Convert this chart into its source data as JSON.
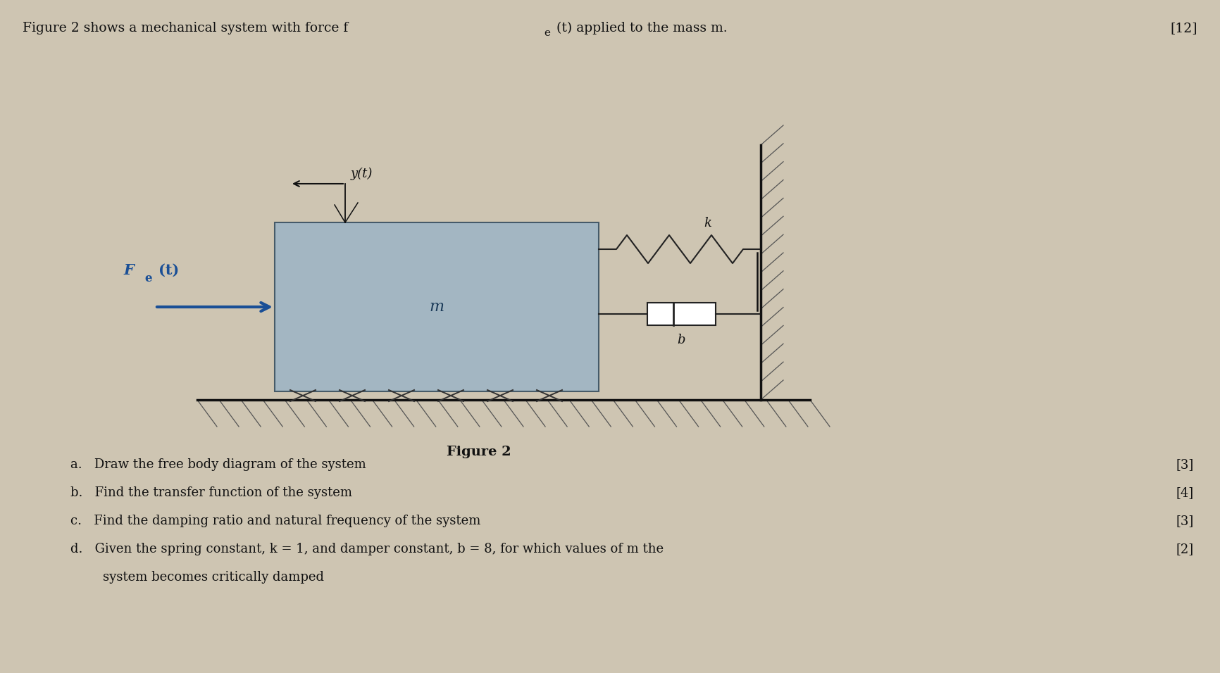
{
  "bg_color": "#cec5b2",
  "title_full": "Figure 2 shows a mechanical system with force f",
  "title_sub_part": "e",
  "title_end": "(t) applied to the mass m.",
  "title_mark": "[12]",
  "fig_label": "Figure 2",
  "mass_label": "m",
  "spring_label": "k",
  "damper_label": "b",
  "force_label_main": "F",
  "force_label_sub": "e",
  "force_label_end": "(t)",
  "disp_label": "y(t)",
  "qa": "a.   Draw the free body diagram of the system",
  "qb": "b.   Find the transfer function of the system",
  "qc": "c.   Find the damping ratio and natural frequency of the system",
  "qd": "d.   Given the spring constant, k = 1, and damper constant, b = 8, for which values of m the",
  "qd2": "        system becomes critically damped",
  "mark_a": "[3]",
  "mark_b": "[4]",
  "mark_c": "[3]",
  "mark_d": "[2]",
  "mass_facecolor": "#9fb5c4",
  "mass_edgecolor": "#3a5060",
  "spring_color": "#222222",
  "damper_color": "#222222",
  "force_color": "#1a4f96",
  "arrow_color": "#111111",
  "ground_color": "#111111",
  "wall_color": "#111111",
  "hatch_color": "#555555",
  "text_color": "#111111",
  "title_fontsize": 13.5,
  "label_fontsize": 13,
  "q_fontsize": 13,
  "mass_label_fontsize": 16,
  "force_fontsize": 15
}
